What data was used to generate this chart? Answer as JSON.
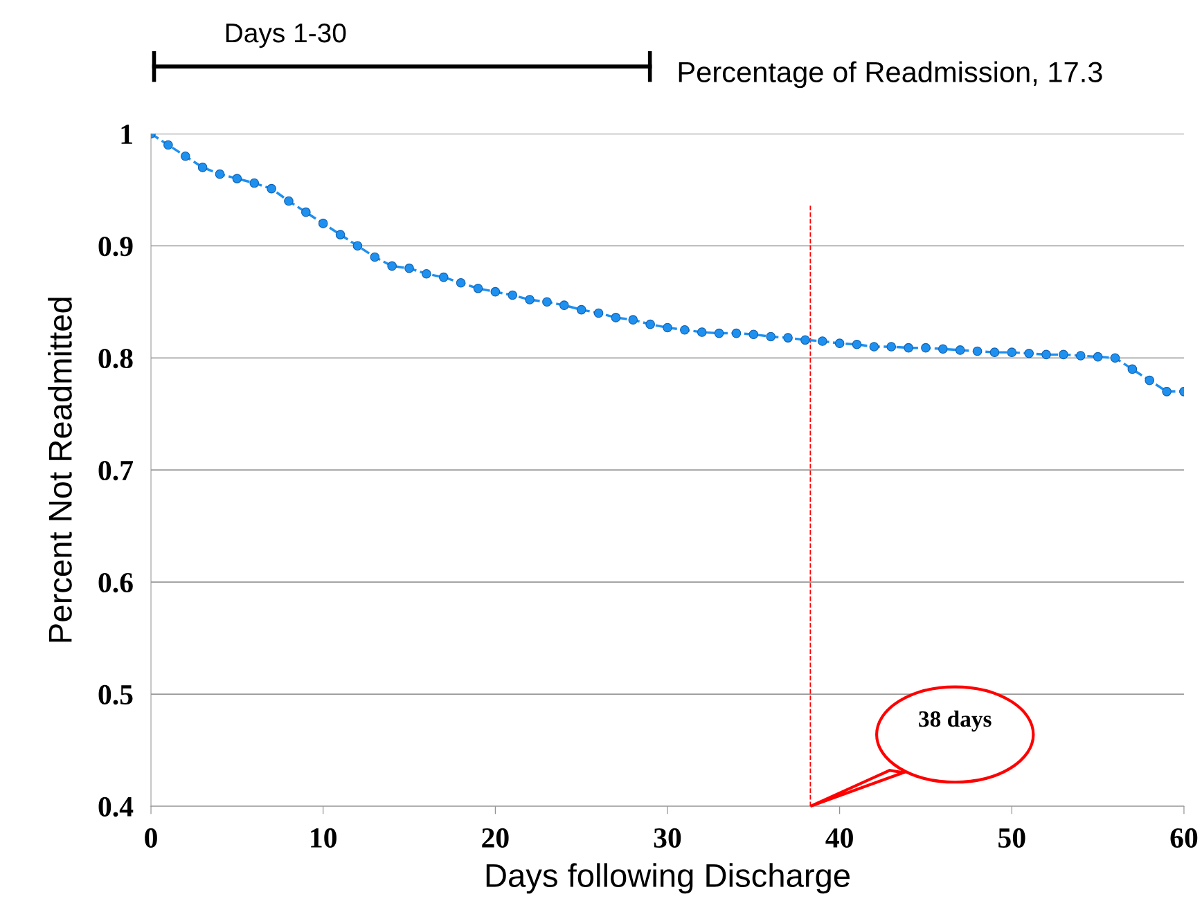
{
  "chart_data": {
    "type": "line",
    "xlabel": "Days following Discharge",
    "ylabel": "Percent Not Readmitted",
    "x": [
      0,
      1,
      2,
      3,
      4,
      5,
      6,
      7,
      8,
      9,
      10,
      11,
      12,
      13,
      14,
      15,
      16,
      17,
      18,
      19,
      20,
      21,
      22,
      23,
      24,
      25,
      26,
      27,
      28,
      29,
      30,
      31,
      32,
      33,
      34,
      35,
      36,
      37,
      38,
      39,
      40,
      41,
      42,
      43,
      44,
      45,
      46,
      47,
      48,
      49,
      50,
      51,
      52,
      53,
      54,
      55,
      56,
      57,
      58,
      59,
      60
    ],
    "series": [
      {
        "color": "#1e90f0",
        "values": [
          1.0,
          0.99,
          0.98,
          0.97,
          0.964,
          0.96,
          0.956,
          0.951,
          0.94,
          0.93,
          0.92,
          0.91,
          0.9,
          0.89,
          0.882,
          0.88,
          0.875,
          0.872,
          0.867,
          0.862,
          0.859,
          0.856,
          0.852,
          0.85,
          0.847,
          0.843,
          0.84,
          0.836,
          0.834,
          0.83,
          0.827,
          0.825,
          0.823,
          0.822,
          0.822,
          0.821,
          0.819,
          0.818,
          0.816,
          0.815,
          0.813,
          0.812,
          0.81,
          0.81,
          0.809,
          0.809,
          0.808,
          0.807,
          0.806,
          0.805,
          0.805,
          0.804,
          0.803,
          0.803,
          0.802,
          0.801,
          0.8,
          0.79,
          0.78,
          0.77,
          0.77
        ]
      }
    ],
    "marker": "circle",
    "line_style": "dashed",
    "xlim": [
      0,
      60
    ],
    "xticks": [
      0,
      10,
      20,
      30,
      40,
      50,
      60
    ],
    "ylim": [
      0.4,
      1
    ],
    "yticks": [
      0.4,
      0.5,
      0.6,
      0.7,
      0.8,
      0.9,
      1
    ],
    "grid": "y",
    "legend": false,
    "ref_lines": [
      {
        "axis": "x",
        "value": 38.3,
        "color": "#ff0000",
        "line_style": "dashed"
      }
    ],
    "annotations": [
      "Days 1-30",
      "Percentage of Readmission, 17.3",
      "38 days"
    ]
  }
}
